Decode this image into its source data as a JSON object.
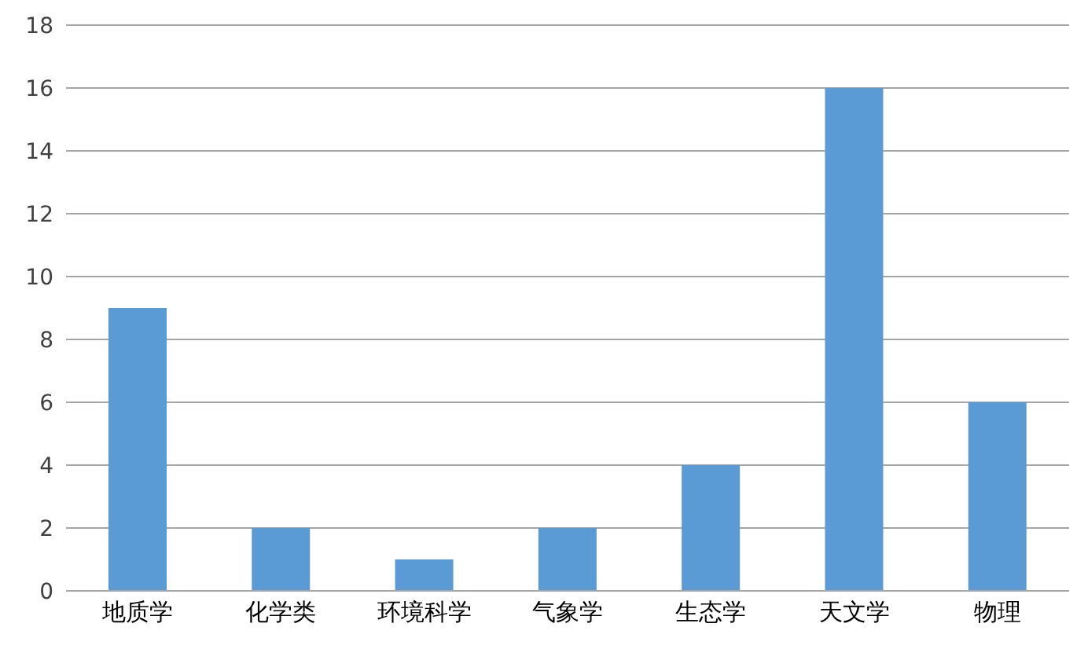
{
  "chart_data": {
    "type": "bar",
    "categories": [
      "地质学",
      "化学类",
      "环境科学",
      "气象学",
      "生态学",
      "天文学",
      "物理"
    ],
    "values": [
      9,
      2,
      1,
      2,
      4,
      16,
      6
    ],
    "color": "#5b9bd5",
    "ylim": [
      0,
      18
    ],
    "yticks": [
      0,
      2,
      4,
      6,
      8,
      10,
      12,
      14,
      16,
      18
    ],
    "grid": "y"
  }
}
